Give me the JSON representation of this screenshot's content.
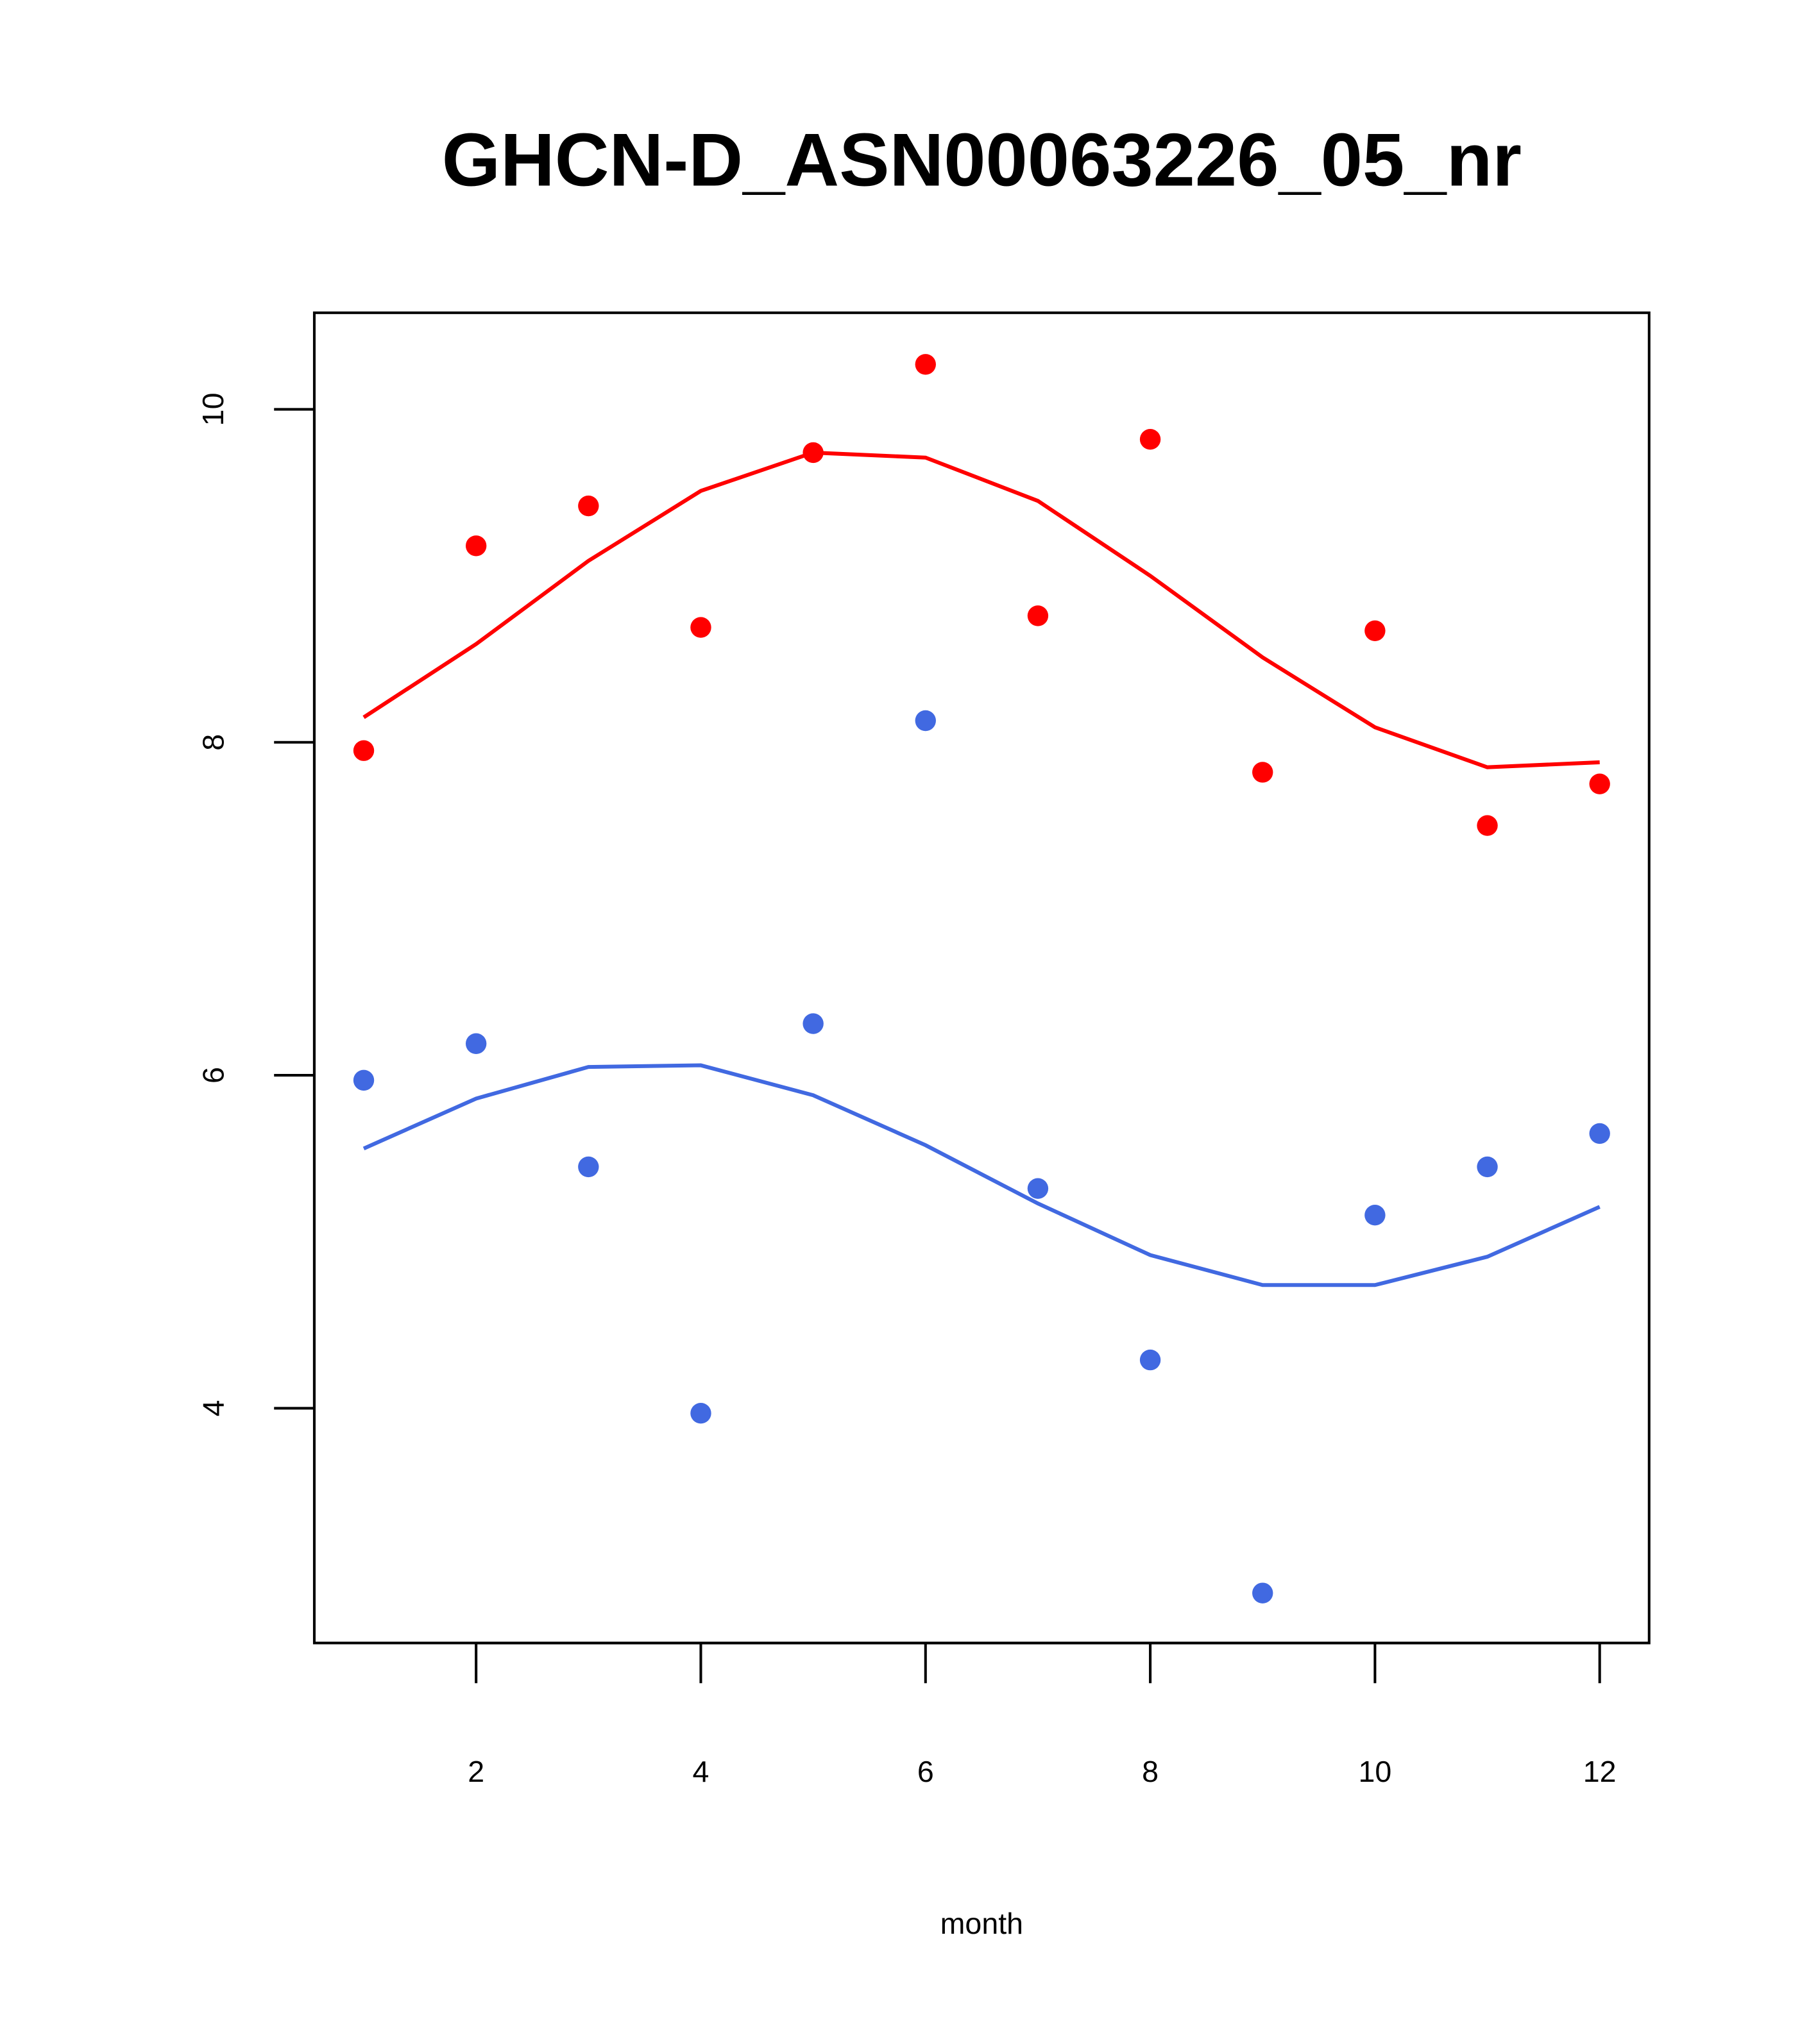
{
  "chart_data": {
    "type": "scatter",
    "title": "GHCN-D_ASN00063226_05_nr",
    "xlabel": "month",
    "ylabel": "",
    "xlim": [
      0.56,
      12.44
    ],
    "ylim": [
      2.59,
      10.58
    ],
    "xticks": [
      2,
      4,
      6,
      8,
      10,
      12
    ],
    "xtick_labels": [
      "2",
      "4",
      "6",
      "8",
      "10",
      "12"
    ],
    "yticks": [
      4,
      6,
      8,
      10
    ],
    "ytick_labels": [
      "4",
      "6",
      "8",
      "10"
    ],
    "grid": false,
    "x": [
      1,
      2,
      3,
      4,
      5,
      6,
      7,
      8,
      9,
      10,
      11,
      12
    ],
    "series": [
      {
        "name": "red points",
        "kind": "points",
        "color": "#FF0000",
        "values": [
          7.95,
          9.18,
          9.42,
          8.69,
          9.74,
          10.27,
          8.76,
          9.82,
          7.82,
          8.67,
          7.5,
          7.75
        ]
      },
      {
        "name": "red smooth",
        "kind": "line",
        "color": "#FF0000",
        "values": [
          8.15,
          8.59,
          9.09,
          9.51,
          9.74,
          9.71,
          9.45,
          9.0,
          8.51,
          8.09,
          7.85,
          7.88
        ]
      },
      {
        "name": "blue points",
        "kind": "points",
        "color": "#4169E1",
        "values": [
          5.97,
          6.19,
          5.45,
          3.97,
          6.31,
          8.13,
          5.32,
          4.29,
          2.89,
          5.16,
          5.45,
          5.65
        ]
      },
      {
        "name": "blue smooth",
        "kind": "line",
        "color": "#4169E1",
        "values": [
          5.56,
          5.86,
          6.05,
          6.06,
          5.88,
          5.58,
          5.23,
          4.92,
          4.74,
          4.74,
          4.91,
          5.21
        ]
      }
    ]
  }
}
